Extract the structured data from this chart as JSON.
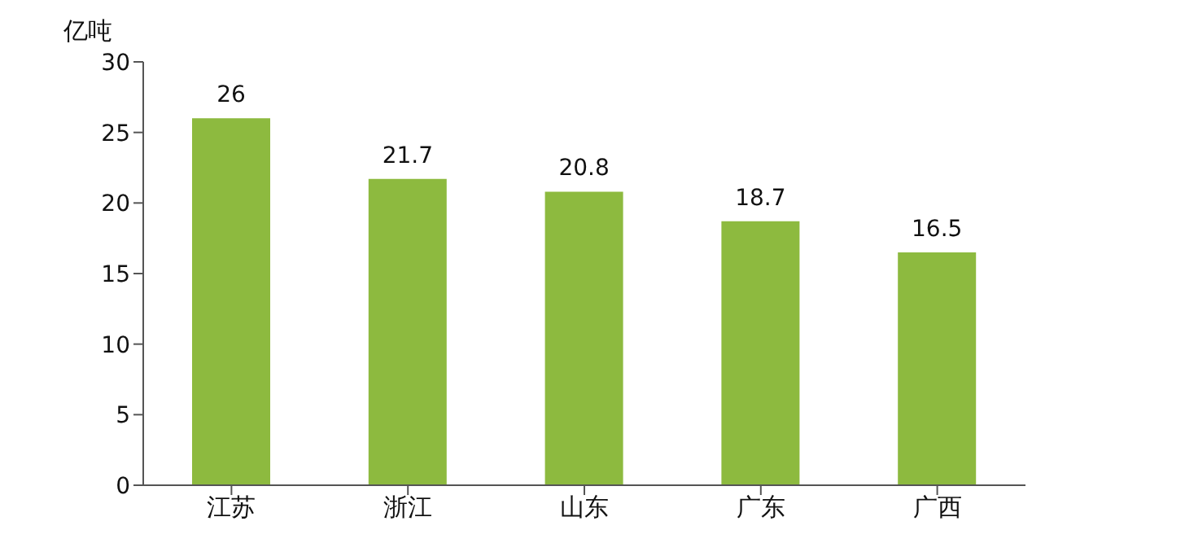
{
  "chart_data": {
    "type": "bar",
    "ylabel": "亿吨",
    "categories": [
      "江苏",
      "浙江",
      "山东",
      "广东",
      "广西"
    ],
    "values": [
      26,
      21.7,
      20.8,
      18.7,
      16.5
    ],
    "color": "#8dba3f",
    "ylim": [
      0,
      30
    ],
    "yticks": [
      0,
      5,
      10,
      15,
      20,
      25,
      30
    ],
    "data_labels": true,
    "grid": false,
    "legend": false
  }
}
